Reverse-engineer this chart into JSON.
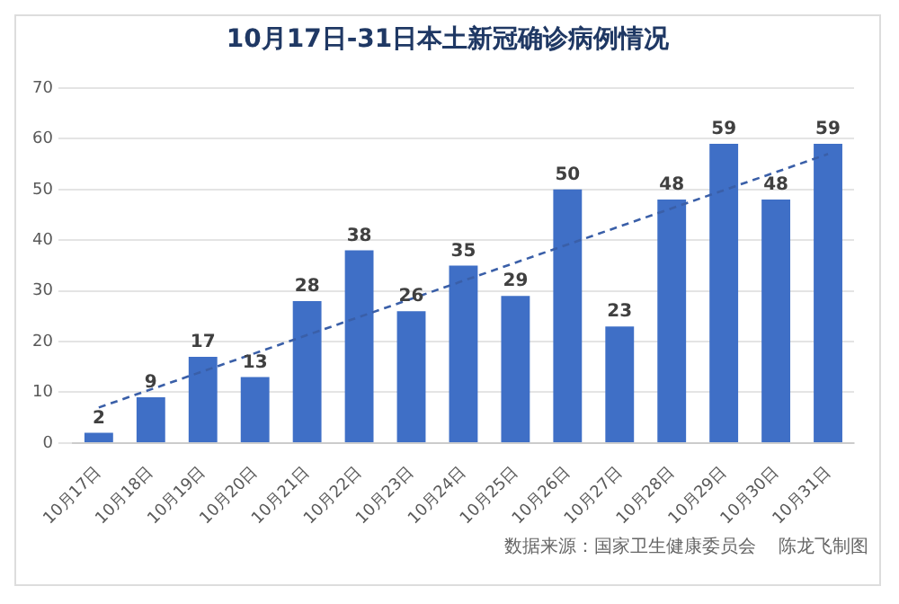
{
  "chart_data": {
    "type": "bar",
    "title": "10月17日-31日本土新冠确诊病例情况",
    "categories": [
      "10月17日",
      "10月18日",
      "10月19日",
      "10月20日",
      "10月21日",
      "10月22日",
      "10月23日",
      "10月24日",
      "10月25日",
      "10月26日",
      "10月27日",
      "10月28日",
      "10月29日",
      "10月30日",
      "10月31日"
    ],
    "series": [
      {
        "color": "#3f6fc6",
        "values": [
          2,
          9,
          17,
          13,
          28,
          38,
          26,
          35,
          29,
          50,
          23,
          48,
          59,
          48,
          59
        ],
        "value_labels": [
          "2",
          "9",
          "17",
          "13",
          "28",
          "38",
          "26",
          "35",
          "29",
          "50",
          "23",
          "48",
          "59",
          "48",
          "59"
        ]
      },
      {
        "type": "line",
        "color": "#3a5fa8",
        "line_style": "dashed",
        "marker": "none",
        "x": [
          "10月17日",
          "10月31日"
        ],
        "values": [
          7,
          57
        ]
      }
    ],
    "ylim": [
      0,
      70
    ],
    "yticks": [
      0,
      10,
      20,
      30,
      40,
      50,
      60,
      70
    ],
    "grid": "y",
    "legend": false,
    "annotations": [
      "数据来源：国家卫生健康委员会    陈龙飞制图"
    ]
  }
}
